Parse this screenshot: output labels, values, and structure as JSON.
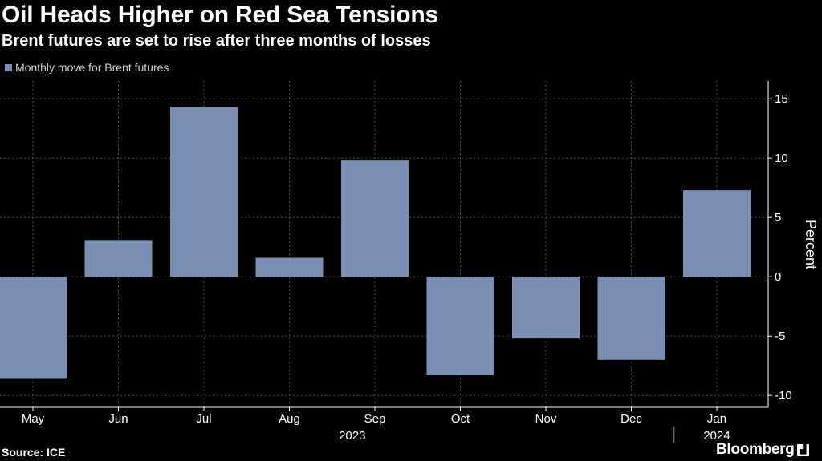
{
  "header": {
    "title": "Oil Heads Higher on Red Sea Tensions",
    "subtitle": "Brent futures are set to rise after three months of losses"
  },
  "footer": {
    "source": "Source: ICE",
    "brand": "Bloomberg",
    "brand_mark_icon": "bloomberg-chart-icon"
  },
  "colors": {
    "background": "#000000",
    "bar": "#7a8fb2",
    "grid": "#4a4a4a",
    "text": "#ffffff"
  },
  "chart_data": {
    "type": "bar",
    "categories": [
      "May",
      "Jun",
      "Jul",
      "Aug",
      "Sep",
      "Oct",
      "Nov",
      "Dec",
      "Jan"
    ],
    "year_labels": [
      {
        "label": "2023",
        "span": [
          "May",
          "Dec"
        ]
      },
      {
        "label": "2024",
        "span": [
          "Jan",
          "Jan"
        ]
      }
    ],
    "series": [
      {
        "name": "Monthly move for Brent futures",
        "values": [
          -8.6,
          3.1,
          14.3,
          1.6,
          9.8,
          -8.3,
          -5.2,
          -7.0,
          7.3
        ]
      }
    ],
    "ylabel": "Percent",
    "ylim": [
      -11,
      16.5
    ],
    "yticks": [
      15,
      10,
      5,
      0,
      -5,
      -10
    ],
    "grid": true,
    "y_axis_side": "right",
    "legend_position": "top-left"
  }
}
